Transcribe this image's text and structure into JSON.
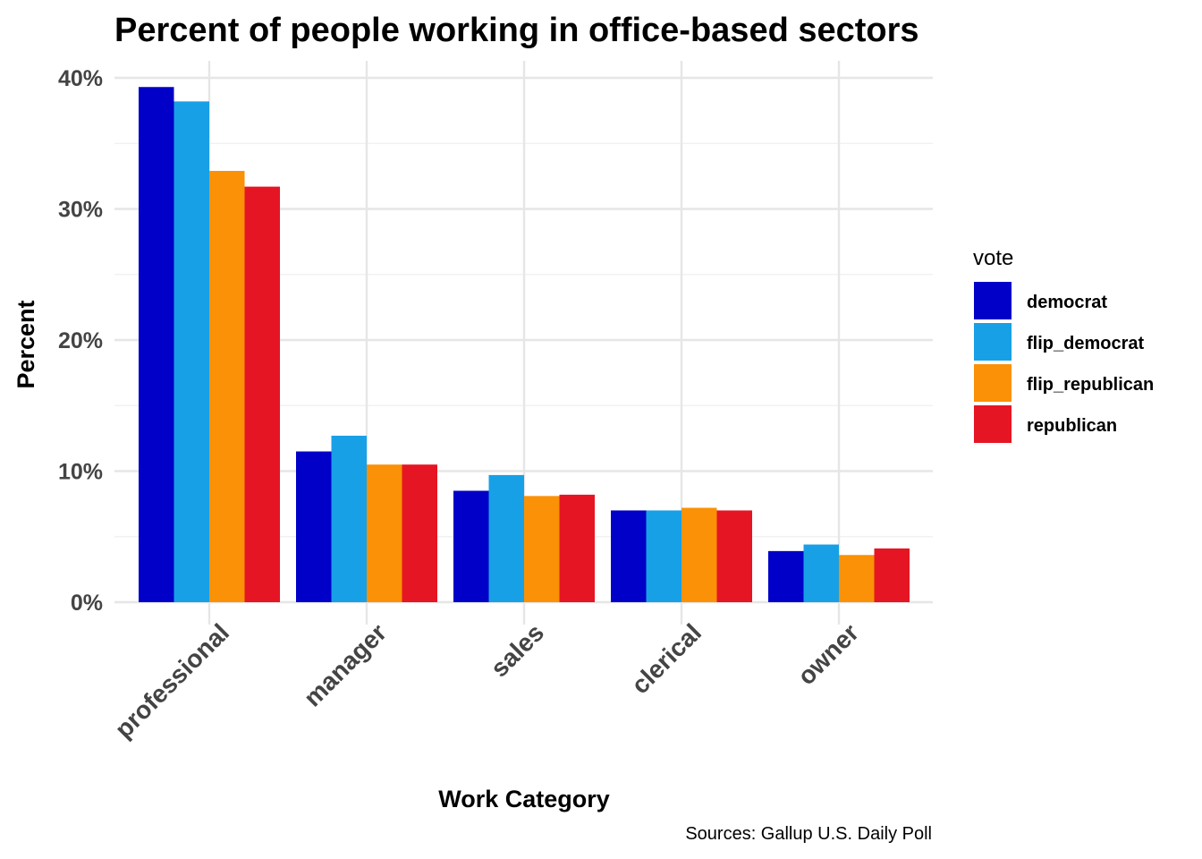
{
  "chart_data": {
    "type": "bar",
    "title": "Percent of people working in office-based sectors",
    "xlabel": "Work Category",
    "ylabel": "Percent",
    "caption": "Sources: Gallup U.S. Daily Poll",
    "categories": [
      "professional",
      "manager",
      "sales",
      "clerical",
      "owner"
    ],
    "legend_title": "vote",
    "legend_position": "right",
    "grid": true,
    "ylim": [
      0,
      0.4
    ],
    "yticks": [
      0,
      0.1,
      0.2,
      0.3,
      0.4
    ],
    "ytick_labels": [
      "0%",
      "10%",
      "20%",
      "30%",
      "40%"
    ],
    "series": [
      {
        "name": "democrat",
        "color": "#0000c8",
        "values": [
          0.393,
          0.115,
          0.085,
          0.07,
          0.039
        ]
      },
      {
        "name": "flip_democrat",
        "color": "#18a0e6",
        "values": [
          0.382,
          0.127,
          0.097,
          0.07,
          0.044
        ]
      },
      {
        "name": "flip_republican",
        "color": "#fa9106",
        "values": [
          0.329,
          0.105,
          0.081,
          0.072,
          0.036
        ]
      },
      {
        "name": "republican",
        "color": "#e61523",
        "values": [
          0.317,
          0.105,
          0.082,
          0.07,
          0.041
        ]
      }
    ]
  }
}
